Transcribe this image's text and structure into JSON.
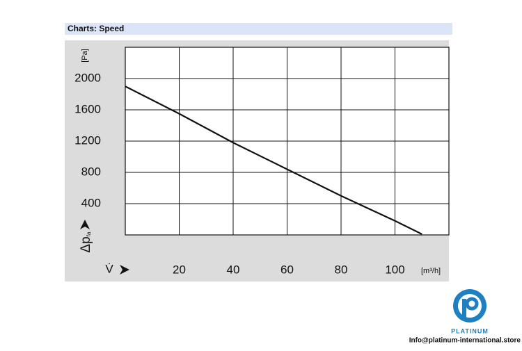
{
  "header": {
    "title": "Charts: Speed"
  },
  "chart_data": {
    "type": "line",
    "x_label": "V̇",
    "x_unit": "[m³/h]",
    "y_label": "Δp",
    "y_label_sub": "fa",
    "y_unit": "[Pa]",
    "x": [
      0,
      20,
      40,
      60,
      80,
      100,
      110
    ],
    "series": [
      {
        "color": "#111111",
        "values": [
          1900,
          1550,
          1180,
          840,
          500,
          180,
          10
        ]
      }
    ],
    "xlim": [
      0,
      120
    ],
    "xticks": [
      20,
      40,
      60,
      80,
      100
    ],
    "ylim": [
      0,
      2400
    ],
    "yticks": [
      400,
      800,
      1200,
      1600,
      2000
    ],
    "grid": true
  },
  "footer": {
    "brand": "PLATINUM",
    "contact": "Info@platinum-international.store"
  }
}
